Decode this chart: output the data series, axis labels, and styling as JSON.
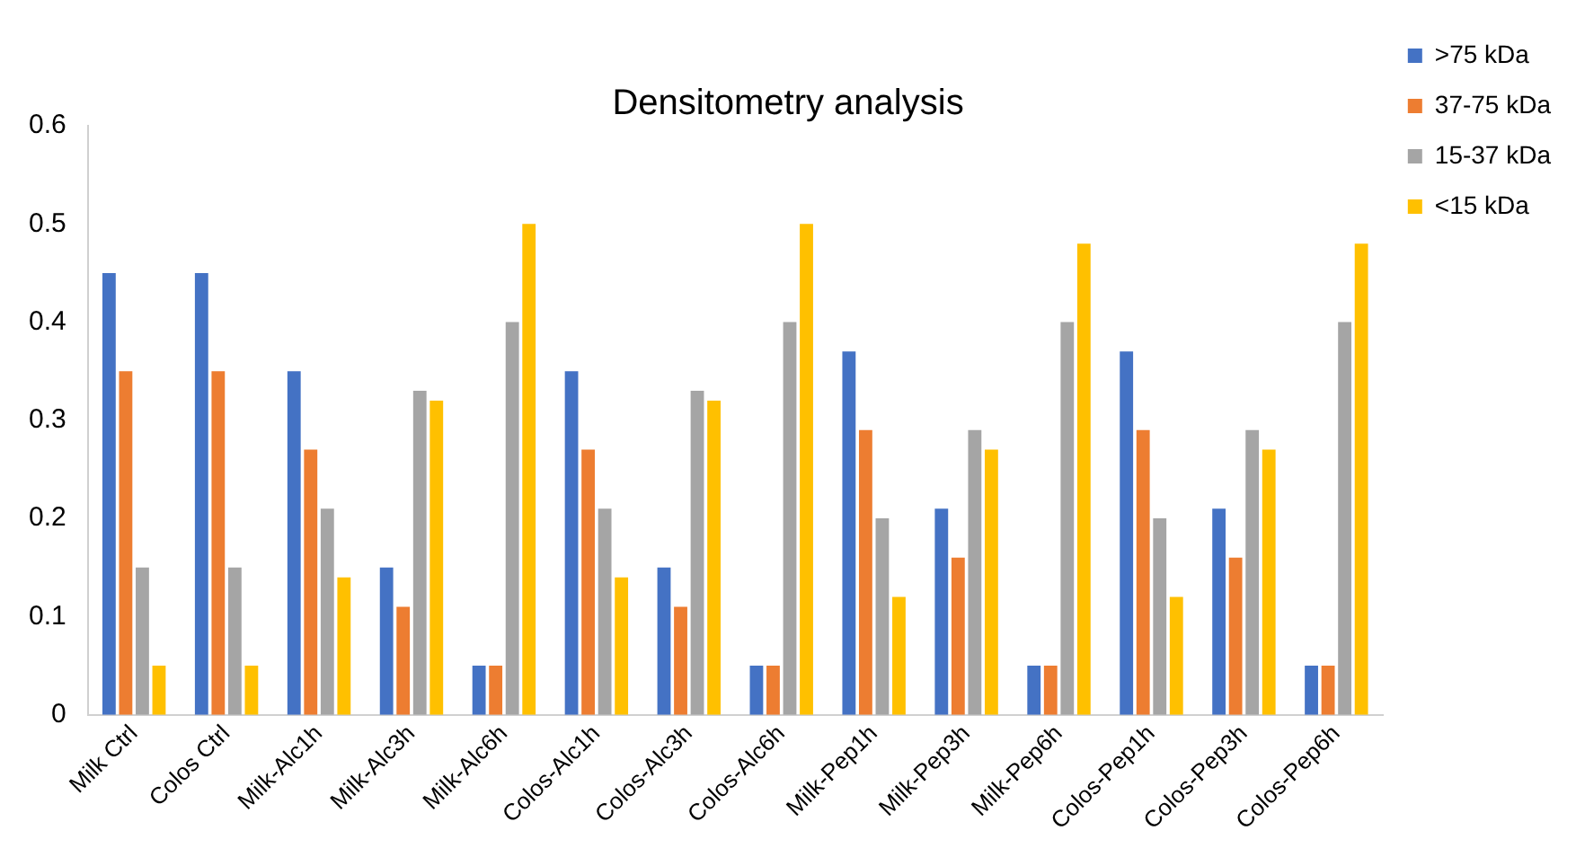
{
  "chart_data": {
    "type": "bar",
    "title": "Densitometry analysis",
    "categories": [
      "Milk Ctrl",
      "Colos Ctrl",
      "Milk-Alc1h",
      "Milk-Alc3h",
      "Milk-Alc6h",
      "Colos-Alc1h",
      "Colos-Alc3h",
      "Colos-Alc6h",
      "Milk-Pep1h",
      "Milk-Pep3h",
      "Milk-Pep6h",
      "Colos-Pep1h",
      "Colos-Pep3h",
      "Colos-Pep6h"
    ],
    "series": [
      {
        "name": ">75 kDa",
        "color": "#4472c4",
        "values": [
          0.45,
          0.45,
          0.35,
          0.15,
          0.05,
          0.35,
          0.15,
          0.05,
          0.37,
          0.21,
          0.05,
          0.37,
          0.21,
          0.05
        ]
      },
      {
        "name": "37-75 kDa",
        "color": "#ed7d31",
        "values": [
          0.35,
          0.35,
          0.27,
          0.11,
          0.05,
          0.27,
          0.11,
          0.05,
          0.29,
          0.16,
          0.05,
          0.29,
          0.16,
          0.05
        ]
      },
      {
        "name": "15-37 kDa",
        "color": "#a5a5a5",
        "values": [
          0.15,
          0.15,
          0.21,
          0.33,
          0.4,
          0.21,
          0.33,
          0.4,
          0.2,
          0.29,
          0.4,
          0.2,
          0.29,
          0.4
        ]
      },
      {
        "name": "<15 kDa",
        "color": "#ffc000",
        "values": [
          0.05,
          0.05,
          0.14,
          0.32,
          0.5,
          0.14,
          0.32,
          0.5,
          0.12,
          0.27,
          0.48,
          0.12,
          0.27,
          0.48
        ]
      }
    ],
    "ylim": [
      0,
      0.6
    ],
    "yticks": [
      0,
      0.1,
      0.2,
      0.3,
      0.4,
      0.5,
      0.6
    ],
    "grid": false,
    "legend": "top right"
  }
}
